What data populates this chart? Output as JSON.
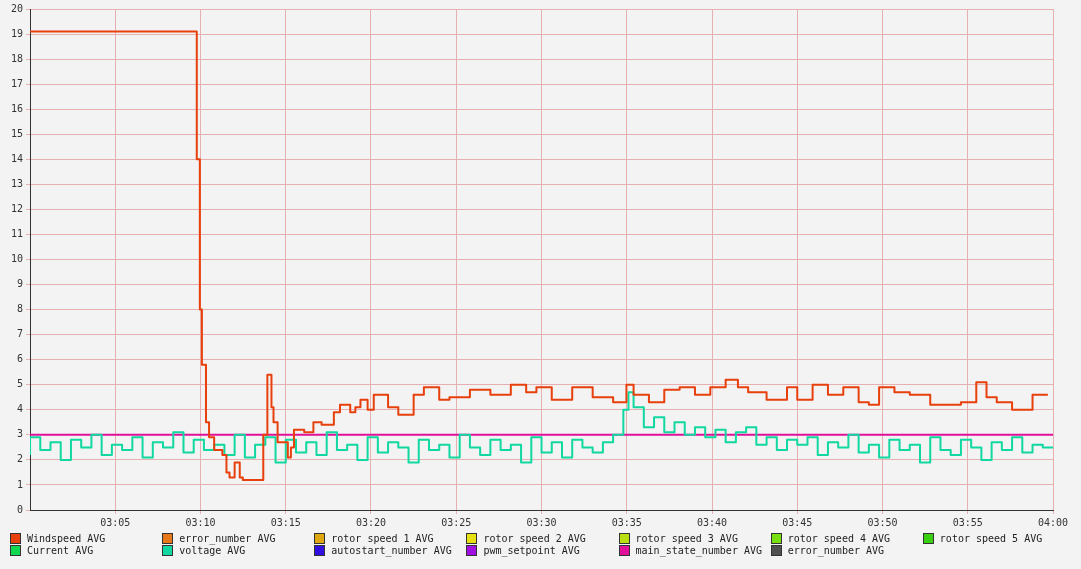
{
  "chart_data": {
    "type": "step",
    "xlim": [
      3,
      4
    ],
    "ylim": [
      0,
      20
    ],
    "xticks": [
      {
        "value": 3.0833,
        "label": "03:05"
      },
      {
        "value": 3.1667,
        "label": "03:10"
      },
      {
        "value": 3.25,
        "label": "03:15"
      },
      {
        "value": 3.3333,
        "label": "03:20"
      },
      {
        "value": 3.4167,
        "label": "03:25"
      },
      {
        "value": 3.5,
        "label": "03:30"
      },
      {
        "value": 3.5833,
        "label": "03:35"
      },
      {
        "value": 3.6667,
        "label": "03:40"
      },
      {
        "value": 3.75,
        "label": "03:45"
      },
      {
        "value": 3.8333,
        "label": "03:50"
      },
      {
        "value": 3.9167,
        "label": "03:55"
      },
      {
        "value": 4,
        "label": "04:00"
      }
    ],
    "yticks": [
      0,
      1,
      2,
      3,
      4,
      5,
      6,
      7,
      8,
      9,
      10,
      11,
      12,
      13,
      14,
      15,
      16,
      17,
      18,
      19,
      20
    ],
    "grid": true,
    "legend": "bottom",
    "marker": "none",
    "line_style": "solid",
    "series": [
      {
        "name": "Windspeed AVG",
        "color": "#e8400c",
        "x": [
          3,
          3.163,
          3.166,
          3.168,
          3.172,
          3.175,
          3.18,
          3.188,
          3.192,
          3.195,
          3.2,
          3.205,
          3.208,
          3.227,
          3.228,
          3.232,
          3.234,
          3.236,
          3.238,
          3.241,
          3.242,
          3.252,
          3.255,
          3.258,
          3.263,
          3.268,
          3.277,
          3.285,
          3.297,
          3.303,
          3.313,
          3.318,
          3.323,
          3.33,
          3.336,
          3.35,
          3.36,
          3.375,
          3.385,
          3.4,
          3.41,
          3.43,
          3.45,
          3.47,
          3.485,
          3.495,
          3.51,
          3.53,
          3.55,
          3.57,
          3.583,
          3.59,
          3.605,
          3.62,
          3.635,
          3.65,
          3.665,
          3.68,
          3.692,
          3.702,
          3.72,
          3.74,
          3.75,
          3.765,
          3.78,
          3.795,
          3.81,
          3.82,
          3.83,
          3.845,
          3.86,
          3.88,
          3.895,
          3.91,
          3.925,
          3.935,
          3.945,
          3.96,
          3.98,
          3.995
        ],
        "values": [
          19.1,
          19.1,
          14,
          8,
          5.8,
          3.5,
          2.9,
          2.4,
          2.2,
          1.5,
          1.3,
          1.9,
          1.3,
          1.2,
          1.2,
          3,
          5.4,
          5.4,
          4.1,
          3.5,
          3.5,
          2.7,
          2.1,
          2.5,
          3.2,
          3.2,
          3.1,
          3.5,
          3.4,
          3.9,
          4.2,
          3.9,
          4.1,
          4.4,
          4.0,
          4.6,
          4.1,
          3.8,
          4.6,
          4.9,
          4.4,
          4.5,
          4.8,
          4.6,
          5.0,
          4.7,
          4.9,
          4.4,
          4.9,
          4.5,
          4.3,
          5.0,
          4.6,
          4.3,
          4.8,
          4.9,
          4.6,
          4.9,
          5.2,
          4.9,
          4.7,
          4.4,
          4.9,
          4.4,
          5.0,
          4.6,
          4.9,
          4.3,
          4.2,
          4.9,
          4.7,
          4.6,
          4.2,
          4.2,
          4.3,
          5.1,
          4.5,
          4.3,
          4.0,
          4.6
        ]
      },
      {
        "name": "error_number AVG",
        "color": "#e8791a"
      },
      {
        "name": "rotor speed 1 AVG",
        "color": "#e0a810"
      },
      {
        "name": "rotor speed 2 AVG",
        "color": "#e8e010"
      },
      {
        "name": "rotor speed 3 AVG",
        "color": "#b8e010"
      },
      {
        "name": "rotor speed 4 AVG",
        "color": "#78e010"
      },
      {
        "name": "rotor speed 5 AVG",
        "color": "#38d010"
      },
      {
        "name": "Current AVG",
        "color": "#10d850"
      },
      {
        "name": "voltage AVG",
        "color": "#10d8a0",
        "x": [
          3,
          3.01,
          3.02,
          3.03,
          3.04,
          3.05,
          3.06,
          3.07,
          3.08,
          3.09,
          3.1,
          3.11,
          3.12,
          3.13,
          3.14,
          3.15,
          3.16,
          3.17,
          3.18,
          3.19,
          3.2,
          3.21,
          3.22,
          3.23,
          3.24,
          3.25,
          3.26,
          3.27,
          3.28,
          3.29,
          3.3,
          3.31,
          3.32,
          3.33,
          3.34,
          3.35,
          3.36,
          3.37,
          3.38,
          3.39,
          3.4,
          3.41,
          3.42,
          3.43,
          3.44,
          3.45,
          3.46,
          3.47,
          3.48,
          3.49,
          3.5,
          3.51,
          3.52,
          3.53,
          3.54,
          3.55,
          3.56,
          3.57,
          3.58,
          3.585,
          3.59,
          3.6,
          3.61,
          3.62,
          3.63,
          3.64,
          3.65,
          3.66,
          3.67,
          3.68,
          3.69,
          3.7,
          3.71,
          3.72,
          3.73,
          3.74,
          3.75,
          3.76,
          3.77,
          3.78,
          3.79,
          3.8,
          3.81,
          3.82,
          3.83,
          3.84,
          3.85,
          3.86,
          3.87,
          3.88,
          3.89,
          3.9,
          3.91,
          3.92,
          3.93,
          3.94,
          3.95,
          3.96,
          3.97,
          3.98,
          3.99,
          4
        ],
        "values": [
          2.2,
          2.9,
          2.4,
          2.7,
          2.0,
          2.8,
          2.5,
          3.0,
          2.2,
          2.6,
          2.4,
          2.9,
          2.1,
          2.7,
          2.5,
          3.1,
          2.3,
          2.8,
          2.4,
          2.6,
          2.2,
          3.0,
          2.1,
          2.6,
          2.9,
          1.9,
          2.8,
          2.3,
          2.7,
          2.2,
          3.1,
          2.4,
          2.6,
          2.0,
          2.9,
          2.3,
          2.7,
          2.5,
          1.9,
          2.8,
          2.4,
          2.6,
          2.1,
          3.0,
          2.5,
          2.2,
          2.8,
          2.4,
          2.6,
          1.9,
          2.9,
          2.3,
          2.7,
          2.1,
          2.8,
          2.5,
          2.3,
          2.7,
          3.0,
          4.0,
          4.7,
          4.1,
          3.3,
          3.7,
          3.1,
          3.5,
          3.0,
          3.3,
          2.9,
          3.2,
          2.7,
          3.1,
          3.3,
          2.6,
          2.9,
          2.4,
          2.8,
          2.6,
          2.9,
          2.2,
          2.7,
          2.5,
          3.0,
          2.3,
          2.6,
          2.1,
          2.8,
          2.4,
          2.6,
          1.9,
          2.9,
          2.4,
          2.2,
          2.8,
          2.5,
          2.0,
          2.7,
          2.4,
          2.9,
          2.3,
          2.6,
          2.5
        ]
      },
      {
        "name": "autostart_number AVG",
        "color": "#3010e0"
      },
      {
        "name": "pwm_setpoint AVG",
        "color": "#a010e0"
      },
      {
        "name": "main_state_number AVG",
        "color": "#e0109a",
        "x": [
          3,
          4
        ],
        "values": [
          3,
          3
        ]
      },
      {
        "name": "error_number AVG",
        "color": "#505050"
      }
    ]
  }
}
